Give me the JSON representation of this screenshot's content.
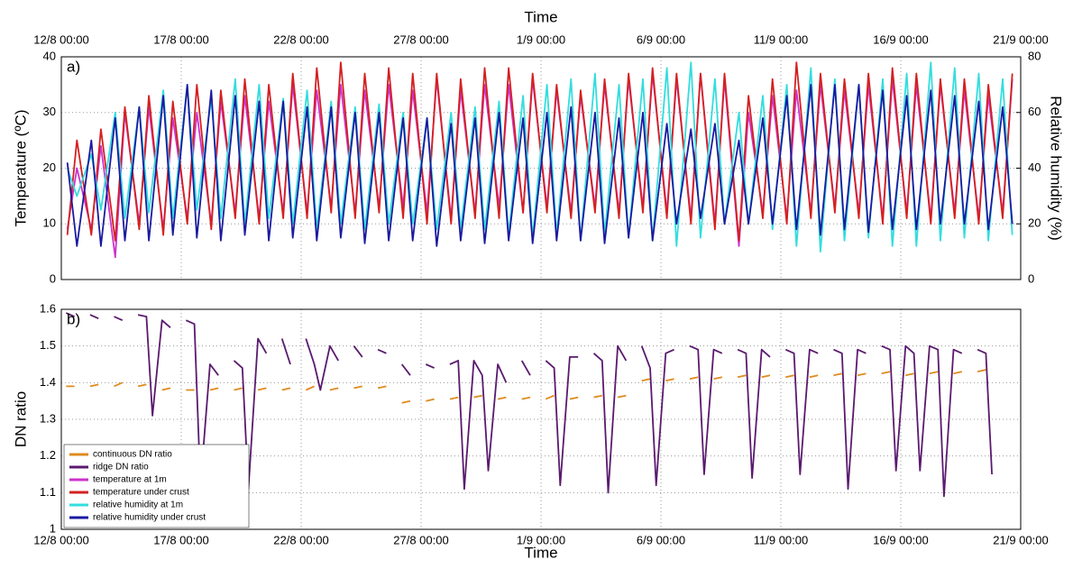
{
  "chart_data": [
    {
      "type": "line",
      "title": "Time",
      "annotation": "a)",
      "ylabel": "Temperature (ºC)",
      "y2label": "Relative humidity (%)",
      "xtick_position": "top",
      "grid": true,
      "xlim": [
        0,
        40
      ],
      "xticks": [
        {
          "value": 0,
          "label": "12/8 00:00"
        },
        {
          "value": 5,
          "label": "17/8 00:00"
        },
        {
          "value": 10,
          "label": "22/8 00:00"
        },
        {
          "value": 15,
          "label": "27/8 00:00"
        },
        {
          "value": 20,
          "label": "1/9 00:00"
        },
        {
          "value": 25,
          "label": "6/9 00:00"
        },
        {
          "value": 30,
          "label": "11/9 00:00"
        },
        {
          "value": 35,
          "label": "16/9 00:00"
        },
        {
          "value": 40,
          "label": "21/9 00:00"
        }
      ],
      "ylim": [
        0,
        40
      ],
      "yticks": [
        0,
        10,
        20,
        30,
        40
      ],
      "y2lim": [
        0,
        80
      ],
      "y2ticks": [
        0,
        20,
        40,
        60,
        80
      ],
      "x": [
        0.25,
        0.65,
        1.25,
        1.65,
        2.25,
        2.65,
        3.25,
        3.65,
        4.25,
        4.65,
        5.25,
        5.65,
        6.25,
        6.65,
        7.25,
        7.65,
        8.25,
        8.65,
        9.25,
        9.65,
        10.25,
        10.65,
        11.25,
        11.65,
        12.25,
        12.65,
        13.25,
        13.65,
        14.25,
        14.65,
        15.25,
        15.65,
        16.25,
        16.65,
        17.25,
        17.65,
        18.25,
        18.65,
        19.25,
        19.65,
        20.25,
        20.65,
        21.25,
        21.65,
        22.25,
        22.65,
        23.25,
        23.65,
        24.25,
        24.65,
        25.25,
        25.65,
        26.25,
        26.65,
        27.25,
        27.65,
        28.25,
        28.65,
        29.25,
        29.65,
        30.25,
        30.65,
        31.25,
        31.65,
        32.25,
        32.65,
        33.25,
        33.65,
        34.25,
        34.65,
        35.25,
        35.65,
        36.25,
        36.65,
        37.25,
        37.65,
        38.25,
        38.65,
        39.25,
        39.65
      ],
      "series": [
        {
          "name": "temperature at 1m",
          "color": "#cc33cc",
          "values": [
            9,
            20,
            9,
            24,
            4,
            30,
            10,
            31,
            9,
            29,
            11,
            30,
            10,
            32,
            12,
            33,
            11,
            32,
            12,
            35,
            12,
            34,
            13,
            35,
            12,
            34,
            13,
            35,
            13,
            34,
            12,
            36,
            11,
            34,
            12,
            35,
            13,
            35,
            12,
            36,
            13,
            34,
            12,
            33,
            13,
            35,
            12,
            36,
            13,
            37,
            12,
            36,
            11,
            37,
            10,
            36,
            6,
            30,
            12,
            33,
            11,
            34,
            12,
            35,
            13,
            34,
            12,
            35,
            11,
            36,
            12,
            35,
            11,
            35,
            12,
            34,
            11,
            33,
            12,
            36
          ]
        },
        {
          "name": "temperature under crust",
          "color": "#d42020",
          "values": [
            8,
            25,
            8,
            27,
            7,
            31,
            9,
            33,
            8,
            32,
            10,
            35,
            9,
            34,
            11,
            36,
            10,
            35,
            11,
            37,
            11,
            38,
            12,
            39,
            11,
            37,
            12,
            38,
            11,
            37,
            10,
            37,
            10,
            36,
            11,
            38,
            11,
            38,
            12,
            37,
            12,
            35,
            11,
            34,
            12,
            36,
            11,
            37,
            12,
            38,
            11,
            37,
            10,
            37,
            9,
            37,
            7,
            33,
            11,
            36,
            10,
            39,
            11,
            37,
            12,
            36,
            11,
            37,
            10,
            38,
            11,
            37,
            10,
            36,
            11,
            36,
            10,
            35,
            11,
            37
          ]
        },
        {
          "name": "relative humidity at 1m",
          "color": "#33dddd",
          "axis": "y2",
          "values": [
            40,
            30,
            45,
            25,
            60,
            22,
            62,
            24,
            68,
            22,
            70,
            25,
            65,
            22,
            72,
            20,
            70,
            22,
            65,
            20,
            68,
            18,
            64,
            20,
            62,
            18,
            63,
            20,
            60,
            20,
            58,
            18,
            60,
            18,
            62,
            18,
            64,
            16,
            66,
            15,
            70,
            16,
            72,
            14,
            74,
            16,
            70,
            15,
            72,
            14,
            76,
            12,
            78,
            15,
            72,
            20,
            60,
            20,
            66,
            18,
            70,
            12,
            76,
            10,
            72,
            14,
            70,
            15,
            72,
            12,
            74,
            12,
            78,
            14,
            76,
            15,
            74,
            14,
            72,
            16
          ]
        },
        {
          "name": "relative humidity under crust",
          "color": "#1a1aa0",
          "axis": "y2",
          "values": [
            42,
            12,
            50,
            12,
            58,
            14,
            62,
            14,
            66,
            16,
            70,
            15,
            68,
            14,
            66,
            16,
            64,
            14,
            64,
            15,
            62,
            14,
            62,
            15,
            60,
            13,
            60,
            14,
            58,
            14,
            58,
            12,
            56,
            14,
            58,
            13,
            60,
            14,
            58,
            13,
            60,
            14,
            62,
            14,
            60,
            13,
            58,
            15,
            60,
            14,
            56,
            20,
            54,
            22,
            56,
            20,
            50,
            20,
            58,
            20,
            66,
            18,
            70,
            16,
            70,
            18,
            70,
            17,
            68,
            18,
            66,
            18,
            68,
            20,
            66,
            20,
            64,
            18,
            62,
            20
          ]
        }
      ]
    },
    {
      "type": "line",
      "annotation": "b)",
      "ylabel": "DN ratio",
      "xlabel": "Time",
      "xtick_position": "bottom",
      "grid": true,
      "legend": "lower left",
      "xlim": [
        0,
        40
      ],
      "xticks": [
        {
          "value": 0,
          "label": "12/8 00:00"
        },
        {
          "value": 5,
          "label": "17/8 00:00"
        },
        {
          "value": 10,
          "label": "22/8 00:00"
        },
        {
          "value": 15,
          "label": "27/8 00:00"
        },
        {
          "value": 20,
          "label": "1/9 00:00"
        },
        {
          "value": 25,
          "label": "6/9 00:00"
        },
        {
          "value": 30,
          "label": "11/9 00:00"
        },
        {
          "value": 35,
          "label": "16/9 00:00"
        },
        {
          "value": 40,
          "label": "21/9 00:00"
        }
      ],
      "ylim": [
        1,
        1.6
      ],
      "yticks": [
        1,
        1.1,
        1.2,
        1.3,
        1.4,
        1.5,
        1.6
      ],
      "x": [
        0.2,
        0.55,
        0.8,
        1.2,
        1.55,
        1.8,
        2.2,
        2.55,
        2.8,
        3.2,
        3.55,
        3.8,
        4.2,
        4.55,
        4.8,
        5.2,
        5.55,
        5.8,
        6.2,
        6.55,
        6.8,
        7.2,
        7.55,
        7.8,
        8.2,
        8.55,
        8.8,
        9.2,
        9.55,
        9.8,
        10.2,
        10.55,
        10.8,
        11.2,
        11.55,
        11.8,
        12.2,
        12.55,
        12.8,
        13.2,
        13.55,
        13.8,
        14.2,
        14.55,
        14.8,
        15.2,
        15.55,
        15.8,
        16.2,
        16.55,
        16.8,
        17.2,
        17.55,
        17.8,
        18.2,
        18.55,
        18.8,
        19.2,
        19.55,
        19.8,
        20.2,
        20.55,
        20.8,
        21.2,
        21.55,
        21.8,
        22.2,
        22.55,
        22.8,
        23.2,
        23.55,
        23.8,
        24.2,
        24.55,
        24.8,
        25.2,
        25.55,
        25.8,
        26.2,
        26.55,
        26.8,
        27.2,
        27.55,
        27.8,
        28.2,
        28.55,
        28.8,
        29.2,
        29.55,
        29.8,
        30.2,
        30.55,
        30.8,
        31.2,
        31.55,
        31.8,
        32.2,
        32.55,
        32.8,
        33.2,
        33.55,
        33.8,
        34.2,
        34.55,
        34.8,
        35.2,
        35.55,
        35.8,
        36.2,
        36.55,
        36.8,
        37.2,
        37.55,
        37.8,
        38.2,
        38.55,
        38.8
      ],
      "series": [
        {
          "name": "continuous DN ratio",
          "color": "#e08a1e",
          "values": [
            1.39,
            1.39,
            null,
            1.39,
            1.395,
            null,
            1.39,
            1.4,
            null,
            1.39,
            1.395,
            null,
            1.38,
            1.385,
            null,
            1.38,
            1.38,
            null,
            1.38,
            1.385,
            null,
            1.38,
            1.385,
            null,
            1.38,
            1.385,
            null,
            1.38,
            1.385,
            null,
            1.38,
            1.39,
            null,
            1.38,
            1.385,
            null,
            1.385,
            1.39,
            null,
            1.385,
            1.39,
            null,
            1.345,
            1.35,
            null,
            1.35,
            1.355,
            null,
            1.355,
            1.36,
            null,
            1.36,
            1.365,
            null,
            1.355,
            1.36,
            null,
            1.355,
            1.36,
            null,
            1.355,
            1.365,
            null,
            1.355,
            1.36,
            null,
            1.36,
            1.365,
            null,
            1.36,
            1.365,
            null,
            1.405,
            1.41,
            null,
            1.405,
            1.41,
            null,
            1.41,
            1.415,
            null,
            1.41,
            1.415,
            null,
            1.415,
            1.42,
            null,
            1.415,
            1.42,
            null,
            1.415,
            1.42,
            null,
            1.415,
            1.42,
            null,
            1.42,
            1.425,
            null,
            1.42,
            1.425,
            null,
            1.425,
            1.43,
            null,
            1.42,
            1.425,
            null,
            1.425,
            1.43,
            null,
            1.425,
            1.43,
            null,
            1.43,
            1.435,
            null
          ]
        },
        {
          "name": "ridge DN ratio",
          "color": "#5a1a6e",
          "values": [
            1.59,
            1.58,
            null,
            1.585,
            1.575,
            null,
            1.58,
            1.57,
            null,
            1.585,
            1.58,
            1.31,
            1.57,
            1.55,
            null,
            1.57,
            1.56,
            1.12,
            1.45,
            1.42,
            null,
            1.46,
            1.44,
            1.11,
            1.52,
            1.48,
            null,
            1.52,
            1.45,
            null,
            1.52,
            1.45,
            1.38,
            1.5,
            1.46,
            null,
            1.5,
            1.47,
            null,
            1.49,
            1.48,
            null,
            1.45,
            1.42,
            null,
            1.45,
            1.44,
            null,
            1.45,
            1.46,
            1.11,
            1.46,
            1.42,
            1.16,
            1.45,
            1.4,
            null,
            1.46,
            1.42,
            null,
            1.46,
            1.44,
            1.12,
            1.47,
            1.47,
            null,
            1.48,
            1.46,
            1.1,
            1.5,
            1.46,
            null,
            1.5,
            1.44,
            1.12,
            1.48,
            1.49,
            null,
            1.5,
            1.49,
            1.15,
            1.49,
            1.48,
            null,
            1.49,
            1.48,
            1.14,
            1.49,
            1.47,
            null,
            1.49,
            1.48,
            1.15,
            1.49,
            1.48,
            null,
            1.49,
            1.48,
            1.11,
            1.49,
            1.48,
            null,
            1.5,
            1.49,
            1.16,
            1.5,
            1.48,
            1.16,
            1.5,
            1.49,
            1.09,
            1.49,
            1.48,
            null,
            1.49,
            1.48,
            1.15
          ]
        }
      ]
    }
  ]
}
